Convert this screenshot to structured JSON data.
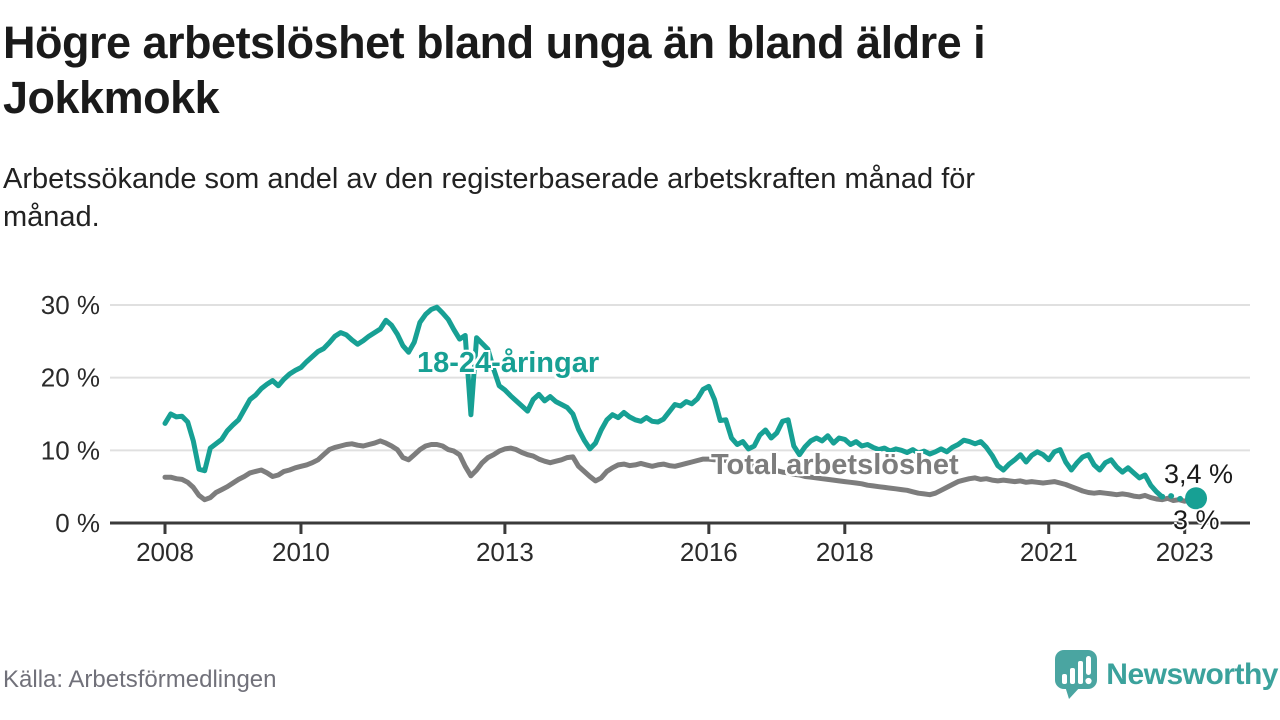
{
  "title": "Högre arbetslöshet bland unga än bland äldre i Jokkmokk",
  "subtitle": "Arbetssökande som andel av den registerbaserade arbetskraften månad för månad.",
  "source": "Källa: Arbetsförmedlingen",
  "logo": {
    "brand": "Newsworthy",
    "icon": "bar-chart-speech-bubble-icon",
    "color": "#4aa5a1"
  },
  "colors": {
    "youth_line": "#17a094",
    "total_line": "#7d7d7d",
    "axis": "#3a3a3a",
    "grid": "#e0e0e0",
    "annotation_text": "#1a1a1a"
  },
  "chart_data": {
    "type": "line",
    "title": "Högre arbetslöshet bland unga än bland äldre i Jokkmokk",
    "xlabel": "",
    "ylabel": "",
    "x_start": "2008-01",
    "x_end": "2023-03",
    "x_ticks": [
      {
        "year": 2008,
        "label": "2008"
      },
      {
        "year": 2010,
        "label": "2010"
      },
      {
        "year": 2013,
        "label": "2013"
      },
      {
        "year": 2016,
        "label": "2016"
      },
      {
        "year": 2018,
        "label": "2018"
      },
      {
        "year": 2021,
        "label": "2021"
      },
      {
        "year": 2023,
        "label": "2023"
      }
    ],
    "y_ticks": [
      {
        "value": 0,
        "label": "0 %"
      },
      {
        "value": 10,
        "label": "10 %"
      },
      {
        "value": 20,
        "label": "20 %"
      },
      {
        "value": 30,
        "label": "30 %"
      }
    ],
    "y_gridlines": [
      10,
      20,
      30
    ],
    "ylim": [
      0,
      31
    ],
    "grid": true,
    "legend_position": "inline-labels",
    "series": [
      {
        "name": "18-24-åringar",
        "color": "#17a094",
        "end_label": "3,4 %",
        "end_value": 3.4,
        "preliminary_dotted_from_index": 176,
        "end_dot": true,
        "values": [
          13.7,
          15.0,
          14.6,
          14.7,
          13.9,
          11.3,
          7.4,
          7.2,
          10.3,
          10.9,
          11.5,
          12.7,
          13.5,
          14.2,
          15.6,
          17.0,
          17.6,
          18.5,
          19.1,
          19.6,
          18.9,
          19.8,
          20.5,
          21.0,
          21.4,
          22.2,
          22.9,
          23.6,
          24.0,
          24.8,
          25.7,
          26.2,
          25.9,
          25.2,
          24.6,
          25.1,
          25.7,
          26.2,
          26.7,
          27.9,
          27.2,
          26.0,
          24.4,
          23.5,
          24.9,
          27.6,
          28.7,
          29.4,
          29.7,
          28.9,
          28.0,
          26.6,
          25.3,
          25.8,
          14.9,
          25.5,
          24.7,
          23.9,
          21.2,
          18.9,
          18.3,
          17.5,
          16.8,
          16.1,
          15.4,
          17.0,
          17.7,
          16.8,
          17.4,
          16.7,
          16.3,
          15.9,
          15.0,
          12.9,
          11.4,
          10.2,
          11.0,
          12.8,
          14.2,
          14.9,
          14.5,
          15.2,
          14.6,
          14.2,
          14.0,
          14.5,
          14.0,
          13.9,
          14.3,
          15.3,
          16.3,
          16.1,
          16.7,
          16.4,
          17.1,
          18.4,
          18.8,
          17.0,
          14.1,
          14.2,
          11.7,
          10.8,
          11.2,
          10.2,
          10.6,
          12.1,
          12.8,
          11.7,
          12.4,
          14.0,
          14.2,
          10.6,
          9.4,
          10.5,
          11.3,
          11.7,
          11.3,
          12.0,
          11.0,
          11.7,
          11.5,
          10.8,
          11.2,
          10.6,
          10.8,
          10.4,
          10.1,
          10.3,
          9.9,
          10.2,
          10.0,
          9.7,
          10.1,
          9.6,
          9.9,
          9.5,
          9.8,
          10.2,
          9.8,
          10.4,
          10.8,
          11.4,
          11.2,
          10.9,
          11.2,
          10.4,
          9.3,
          7.9,
          7.3,
          8.1,
          8.7,
          9.4,
          8.4,
          9.3,
          9.8,
          9.4,
          8.7,
          9.8,
          10.1,
          8.4,
          7.3,
          8.3,
          9.1,
          9.4,
          8.0,
          7.3,
          8.3,
          8.7,
          7.7,
          7.0,
          7.6,
          6.9,
          6.2,
          6.6,
          5.2,
          4.3,
          3.6,
          3.9,
          3.6,
          3.3,
          3.5,
          3.2,
          3.4
        ]
      },
      {
        "name": "Total arbetslöshet",
        "color": "#7d7d7d",
        "end_label": "3 %",
        "end_value": 3.0,
        "end_dot": false,
        "values": [
          6.3,
          6.3,
          6.1,
          6.0,
          5.6,
          4.9,
          3.8,
          3.2,
          3.5,
          4.2,
          4.6,
          5.0,
          5.5,
          6.0,
          6.4,
          6.9,
          7.1,
          7.3,
          6.9,
          6.4,
          6.6,
          7.1,
          7.3,
          7.6,
          7.8,
          8.0,
          8.3,
          8.7,
          9.4,
          10.1,
          10.4,
          10.6,
          10.8,
          10.9,
          10.7,
          10.6,
          10.8,
          11.0,
          11.3,
          11.0,
          10.6,
          10.1,
          9.0,
          8.7,
          9.4,
          10.1,
          10.6,
          10.8,
          10.8,
          10.6,
          10.1,
          9.9,
          9.4,
          7.8,
          6.5,
          7.3,
          8.3,
          9.0,
          9.4,
          9.9,
          10.2,
          10.3,
          10.1,
          9.7,
          9.4,
          9.2,
          8.8,
          8.5,
          8.3,
          8.5,
          8.7,
          9.0,
          9.1,
          7.8,
          7.1,
          6.4,
          5.8,
          6.2,
          7.1,
          7.6,
          8.0,
          8.1,
          7.9,
          8.0,
          8.2,
          8.0,
          7.8,
          8.0,
          8.1,
          7.9,
          7.8,
          8.0,
          8.2,
          8.4,
          8.6,
          8.8,
          8.8,
          8.7,
          8.8,
          8.6,
          8.7,
          8.5,
          8.3,
          8.1,
          7.9,
          7.7,
          7.5,
          7.3,
          7.2,
          7.0,
          6.9,
          6.7,
          6.6,
          6.4,
          6.3,
          6.2,
          6.1,
          6.0,
          5.9,
          5.8,
          5.7,
          5.6,
          5.5,
          5.4,
          5.2,
          5.1,
          5.0,
          4.9,
          4.8,
          4.7,
          4.6,
          4.5,
          4.3,
          4.1,
          4.0,
          3.9,
          4.1,
          4.5,
          4.9,
          5.3,
          5.7,
          5.9,
          6.1,
          6.2,
          6.0,
          6.1,
          5.9,
          5.8,
          5.9,
          5.8,
          5.7,
          5.8,
          5.6,
          5.7,
          5.6,
          5.5,
          5.6,
          5.7,
          5.5,
          5.3,
          5.0,
          4.7,
          4.4,
          4.2,
          4.1,
          4.2,
          4.1,
          4.0,
          3.9,
          4.0,
          3.9,
          3.7,
          3.6,
          3.8,
          3.5,
          3.3,
          3.2,
          3.4,
          3.1,
          3.2,
          3.0,
          3.1,
          3.0
        ]
      }
    ]
  }
}
